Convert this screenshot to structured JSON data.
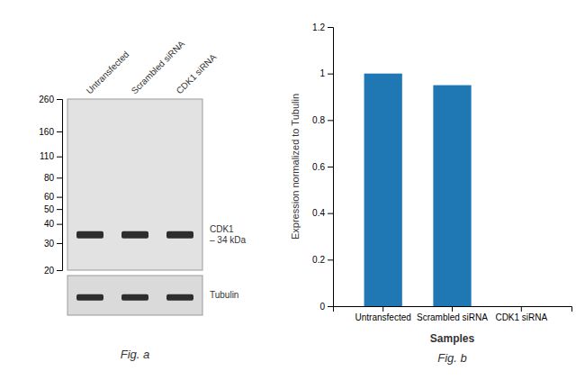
{
  "chart_data": [
    {
      "type": "blot",
      "categories": [
        "Untransfected",
        "Scrambled siRNA",
        "CDK1 siRNA"
      ],
      "values": [
        34,
        34,
        34
      ],
      "color": "#2d2d2d",
      "ylim": [
        20,
        260
      ],
      "yticks": [
        260,
        160,
        110,
        80,
        60,
        50,
        40,
        30,
        20
      ],
      "log": "y",
      "annotations": [
        "CDK1\n– 34 kDa",
        "Tubulin",
        "Fig. a"
      ]
    },
    {
      "type": "bar",
      "categories": [
        "Untransfected",
        "Scrambled siRNA",
        "CDK1 siRNA"
      ],
      "values": [
        1,
        0.95,
        0
      ],
      "ylim": [
        0,
        1.2
      ],
      "yticks": [
        0,
        0.2,
        0.4,
        0.6,
        0.8,
        1,
        1.2
      ],
      "xlabel": "Samples",
      "ylabel": "Expression normalized to Tubulin",
      "grid": false,
      "annotations": [
        "Fig. b"
      ]
    }
  ]
}
